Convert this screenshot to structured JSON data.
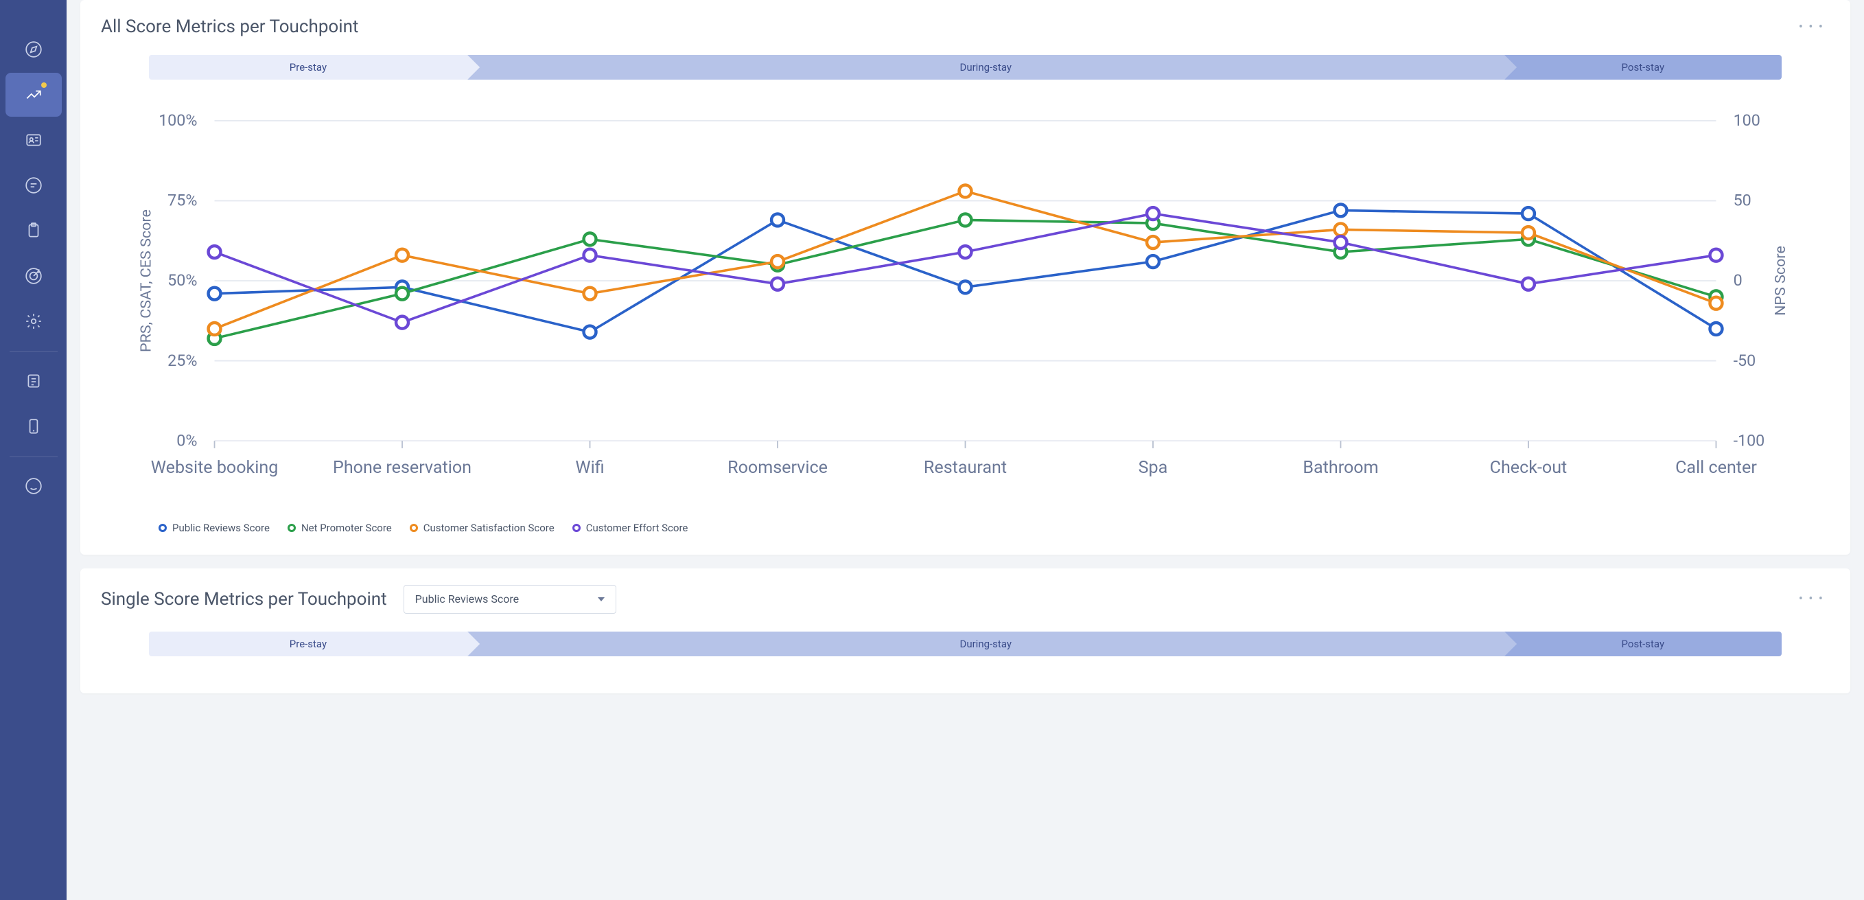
{
  "sidebar": {
    "bg": "#3b4d8b",
    "active_bg": "#5a6fb8",
    "icon_color": "#c8d0e8",
    "items": [
      {
        "name": "compass-icon"
      },
      {
        "name": "analytics-icon",
        "active": true,
        "notify": true
      },
      {
        "name": "id-card-icon"
      },
      {
        "name": "chat-icon"
      },
      {
        "name": "clipboard-icon"
      },
      {
        "name": "target-icon"
      },
      {
        "name": "gear-icon"
      },
      {
        "divider": true
      },
      {
        "name": "notes-icon"
      },
      {
        "name": "mobile-icon"
      },
      {
        "divider": true
      },
      {
        "name": "face-icon"
      }
    ]
  },
  "panel1": {
    "title": "All Score Metrics per Touchpoint",
    "journey": [
      {
        "label": "Pre-stay"
      },
      {
        "label": "During-stay"
      },
      {
        "label": "Post-stay"
      }
    ],
    "chart": {
      "type": "line",
      "categories": [
        "Website booking",
        "Phone reservation",
        "Wifi",
        "Roomservice",
        "Restaurant",
        "Spa",
        "Bathroom",
        "Check-out",
        "Call center"
      ],
      "y_left": {
        "label": "PRS, CSAT, CES Score",
        "min": 0,
        "max": 100,
        "ticks": [
          0,
          25,
          50,
          75,
          100
        ],
        "suffix": "%"
      },
      "y_right": {
        "label": "NPS Score",
        "min": -100,
        "max": 100,
        "ticks": [
          -100,
          -50,
          0,
          50,
          100
        ]
      },
      "grid_color": "#e5e9f0",
      "bg": "#ffffff",
      "tick_color": "#b8c0d0",
      "label_color": "#6b7897",
      "label_fontsize": 13,
      "marker_radius": 5,
      "marker_fill": "#ffffff",
      "line_width": 2,
      "series": [
        {
          "name": "Public Reviews Score",
          "color": "#2a62c9",
          "axis": "left",
          "values": [
            46,
            48,
            34,
            69,
            48,
            56,
            72,
            71,
            35
          ]
        },
        {
          "name": "Net Promoter Score",
          "color": "#2b9f4a",
          "axis": "right",
          "values": [
            -36,
            -8,
            26,
            10,
            38,
            36,
            18,
            26,
            -10
          ]
        },
        {
          "name": "Customer Satisfaction Score",
          "color": "#ee8b1f",
          "axis": "left",
          "values": [
            35,
            58,
            46,
            56,
            78,
            62,
            66,
            65,
            43
          ]
        },
        {
          "name": "Customer Effort Score",
          "color": "#6b48d6",
          "axis": "left",
          "values": [
            59,
            37,
            58,
            49,
            59,
            71,
            62,
            49,
            58
          ]
        }
      ]
    }
  },
  "panel2": {
    "title": "Single Score Metrics per Touchpoint",
    "dropdown": {
      "selected": "Public Reviews Score"
    },
    "journey": [
      {
        "label": "Pre-stay"
      },
      {
        "label": "During-stay"
      },
      {
        "label": "Post-stay"
      }
    ]
  }
}
